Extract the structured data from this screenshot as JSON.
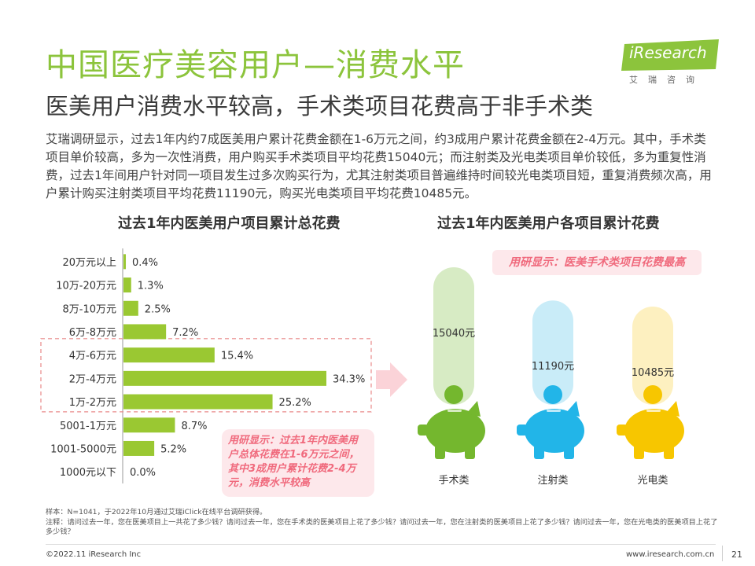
{
  "header": {
    "title": "中国医疗美容用户—消费水平",
    "subtitle": "医美用户消费水平较高，手术类项目花费高于非手术类"
  },
  "logo": {
    "text": "iResearch",
    "sub": "艾瑞咨询"
  },
  "intro": "艾瑞调研显示，过去1年内约7成医美用户累计花费金额在1-6万元之间，约3成用户累计花费金额在2-4万元。其中，手术类项目单价较高，多为一次性消费，用户购买手术类项目平均花费15040元；而注射类及光电类项目单价较低，多为重复性消费，过去1年间用户针对同一项目发生过多次购买行为，尤其注射类项目普遍维持时间较光电类项目短，重复消费频次高，用户累计购买注射类项目平均花费11190元，购买光电类项目平均花费10485元。",
  "callouts": {
    "left": "用研显示：过去1年内医美用户总体花费在1-6万元之间，其中3成用户累计花费2-4万元，消费水平较高",
    "right": "用研显示：医美手术类项目花费最高"
  },
  "footnote": {
    "sample": "样本：N=1041，于2022年10月通过艾瑞iClick在线平台调研获得。",
    "note": "注释：请问过去一年，您在医美项目上一共花了多少钱？请问过去一年，您在手术类的医美项目上花了多少钱？请问过去一年，您在注射类的医美项目上花了多少钱？请问过去一年，您在光电类的医美项目上花了多少钱？"
  },
  "footer": {
    "copyright": "©2022.11 iResearch Inc",
    "website": "www.iresearch.com.cn",
    "page": "21"
  },
  "colors": {
    "title": "#8cc43c",
    "bar": "#9ac832",
    "highlight_border": "#e88a8a",
    "callout_text": "#f06a7d",
    "callout_bg": "#fde8eb",
    "pig_green": "#74b72e",
    "pig_blue": "#22b5e8",
    "pig_yellow": "#f7c600"
  },
  "chart_data": [
    {
      "type": "bar",
      "orientation": "horizontal",
      "title": "过去1年内医美用户项目累计总花费",
      "categories": [
        "20万元以上",
        "10万-20万元",
        "8万-10万元",
        "6万-8万元",
        "4万-6万元",
        "2万-4万元",
        "1万-2万元",
        "5001-1万元",
        "1001-5000元",
        "1000元以下"
      ],
      "values": [
        0.4,
        1.3,
        2.5,
        7.2,
        15.4,
        34.3,
        25.2,
        8.7,
        5.2,
        0.0
      ],
      "value_labels": [
        "0.4%",
        "1.3%",
        "2.5%",
        "7.2%",
        "15.4%",
        "34.3%",
        "25.2%",
        "8.7%",
        "5.2%",
        "0.0%"
      ],
      "highlighted_categories": [
        "4万-6万元",
        "2万-4万元",
        "1万-2万元"
      ]
    },
    {
      "type": "bar",
      "title": "过去1年内医美用户各项目累计花费",
      "categories": [
        "手术类",
        "注射类",
        "光电类"
      ],
      "values": [
        15040,
        11190,
        10485
      ],
      "value_labels": [
        "15040元",
        "11190元",
        "10485元"
      ],
      "series_colors": [
        "#74b72e",
        "#22b5e8",
        "#f7c600"
      ]
    }
  ]
}
